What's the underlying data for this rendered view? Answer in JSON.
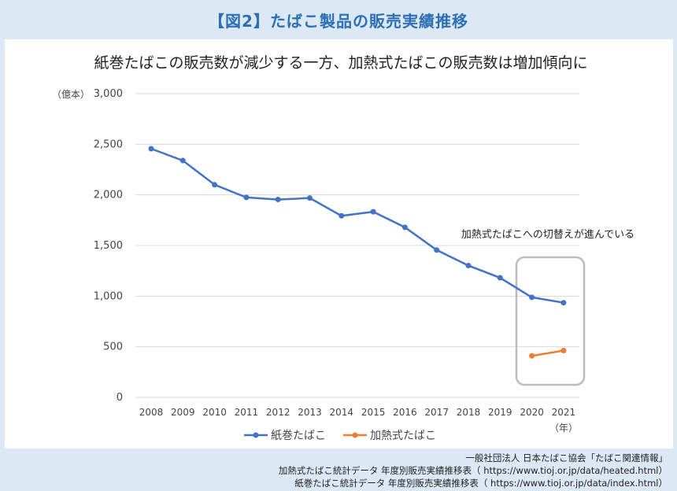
{
  "header": {
    "title": "【図2】たばこ製品の販売実績推移"
  },
  "chart_data": {
    "type": "line",
    "title": "紙巻たばこの販売数が減少する一方、加熱式たばこの販売数は増加傾向に",
    "y_unit_label": "（億本）",
    "x_unit_label": "（年）",
    "ylim": [
      0,
      3000
    ],
    "yticks": [
      0,
      500,
      1000,
      1500,
      2000,
      2500,
      3000
    ],
    "ytick_labels": [
      "0",
      "500",
      "1,000",
      "1,500",
      "2,000",
      "2,500",
      "3,000"
    ],
    "x": [
      "2008",
      "2009",
      "2010",
      "2011",
      "2012",
      "2013",
      "2014",
      "2015",
      "2016",
      "2017",
      "2018",
      "2019",
      "2020",
      "2021"
    ],
    "grid": true,
    "legend_position": "bottom",
    "series": [
      {
        "name": "紙巻たばこ",
        "color": "#4472c4",
        "values": [
          2456,
          2339,
          2100,
          1975,
          1954,
          1969,
          1793,
          1833,
          1680,
          1455,
          1302,
          1181,
          988,
          935
        ]
      },
      {
        "name": "加熱式たばこ",
        "color": "#ed7d31",
        "values": [
          null,
          null,
          null,
          null,
          null,
          null,
          null,
          null,
          null,
          null,
          null,
          null,
          410,
          462
        ]
      }
    ],
    "annotation": {
      "text": "加熱式たばこへの切替えが進んでいる"
    }
  },
  "source": {
    "line1": "一般社団法人 日本たばこ協会「たばこ関連情報」",
    "line2": "加熱式たばこ統計データ 年度別販売実績推移表（ https://www.tioj.or.jp/data/heated.html）",
    "line3": "紙巻たばこ統計データ 年度別販売実績推移表（ https://www.tioj.or.jp/data/index.html）"
  }
}
